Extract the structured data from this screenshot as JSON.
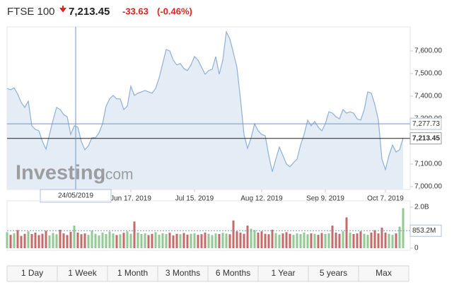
{
  "header": {
    "title": "FTSE 100",
    "price": "7,213.45",
    "change": "-33.63",
    "change_pct": "(-0.46%)"
  },
  "brand": "Investing",
  "brand_suffix": ".com",
  "chart_data": [
    {
      "type": "area",
      "color": "#8fb0d6",
      "fill": "#e4ecf5",
      "values": [
        7434,
        7428,
        7437,
        7409,
        7372,
        7350,
        7378,
        7269,
        7253,
        7247,
        7200,
        7166,
        7231,
        7294,
        7350,
        7341,
        7319,
        7309,
        7231,
        7269,
        7263,
        7200,
        7163,
        7181,
        7216,
        7216,
        7238,
        7278,
        7356,
        7388,
        7403,
        7388,
        7388,
        7341,
        7356,
        7444,
        7403,
        7413,
        7419,
        7425,
        7419,
        7413,
        7434,
        7481,
        7544,
        7606,
        7600,
        7559,
        7538,
        7544,
        7522,
        7513,
        7538,
        7575,
        7559,
        7528,
        7497,
        7513,
        7519,
        7575,
        7497,
        7559,
        7684,
        7653,
        7591,
        7528,
        7388,
        7231,
        7169,
        7216,
        7278,
        7247,
        7231,
        7225,
        7138,
        7066,
        7122,
        7175,
        7138,
        7100,
        7088,
        7106,
        7122,
        7184,
        7231,
        7294,
        7269,
        7288,
        7263,
        7247,
        7278,
        7331,
        7325,
        7309,
        7300,
        7341,
        7325,
        7331,
        7325,
        7300,
        7294,
        7341,
        7419,
        7413,
        7363,
        7294,
        7122,
        7075,
        7138,
        7184,
        7153,
        7163,
        7216
      ],
      "xlim": [
        0,
        112
      ],
      "xticks": [
        {
          "value": 35,
          "label": "Jun 17, 2019"
        },
        {
          "value": 53,
          "label": "Jul 15, 2019"
        },
        {
          "value": 72,
          "label": "Aug 12, 2019"
        },
        {
          "value": 90,
          "label": "Sep 9, 2019"
        },
        {
          "value": 107,
          "label": "Oct 7, 2019"
        }
      ],
      "ylim": [
        6987.5,
        7706.25
      ],
      "yticks": [
        {
          "value": 7000,
          "label": "7,000.00"
        },
        {
          "value": 7100,
          "label": "7,100.00"
        },
        {
          "value": 7200,
          "label": "7,200.00"
        },
        {
          "value": 7300,
          "label": "7,300.00"
        },
        {
          "value": 7400,
          "label": "7,400.00"
        },
        {
          "value": 7500,
          "label": "7,500.00"
        },
        {
          "value": 7600,
          "label": "7,600.00"
        }
      ],
      "crosshair_price": {
        "value": 7277.73,
        "label": "7,277.73"
      },
      "crosshair_date": "24/05/2019",
      "last": {
        "value": 7213.45,
        "label": "7,213.45"
      }
    },
    {
      "type": "bar",
      "up_color": "#93c993",
      "down_color": "#c56b6b",
      "values": [
        780,
        650,
        720,
        880,
        600,
        700,
        820,
        690,
        760,
        640,
        700,
        850,
        620,
        740,
        680,
        900,
        720,
        640,
        800,
        1100,
        760,
        680,
        720,
        650,
        870,
        700,
        620,
        760,
        690,
        810,
        720,
        640,
        680,
        750,
        820,
        700,
        1300,
        760,
        690,
        720,
        640,
        700,
        780,
        660,
        720,
        690,
        750,
        620,
        700,
        680,
        740,
        660,
        700,
        720,
        650,
        680,
        760,
        700,
        640,
        720,
        690,
        750,
        710,
        680,
        1350,
        820,
        760,
        700,
        1100,
        950,
        880,
        760,
        820,
        700,
        680,
        900,
        740,
        660,
        720,
        780,
        700,
        650,
        720,
        690,
        760,
        680,
        720,
        700,
        650,
        740,
        690,
        720,
        1100,
        760,
        700,
        820,
        1500,
        760,
        690,
        720,
        820,
        700,
        650,
        760,
        880,
        720,
        1000,
        760,
        700,
        650,
        720,
        1050,
        1950
      ],
      "ylim": [
        0,
        2000
      ],
      "yticks": [
        0,
        {
          "value": 2000,
          "label": "2.0B"
        }
      ],
      "crosshair": {
        "value": 853.2,
        "label": "853.2M"
      }
    }
  ],
  "ranges": [
    "1 Day",
    "1 Week",
    "1 Month",
    "3 Months",
    "6 Months",
    "1 Year",
    "5 years",
    "Max"
  ]
}
